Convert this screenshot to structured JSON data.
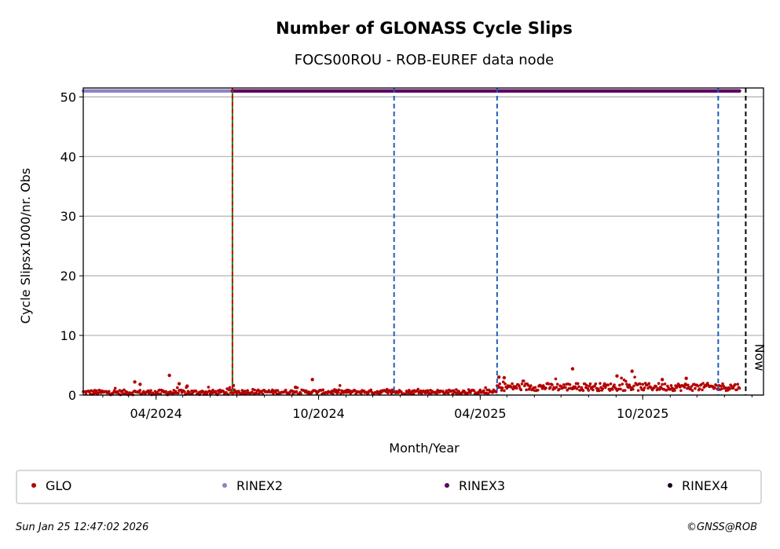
{
  "colors": {
    "glo": "#b30000",
    "rinex2": "#8c84c4",
    "rinex3": "#5e0061",
    "rinex4": "#1a0024",
    "vline_green": "#1a8a1a",
    "vline_red": "#cc0000",
    "vline_blue": "#1f5fb8",
    "grid": "#b0b0b0"
  },
  "chart_data": {
    "type": "scatter",
    "title": "Number of GLONASS Cycle Slips",
    "subtitle": "FOCS00ROU - ROB-EUREF data node",
    "xlabel": "Month/Year",
    "ylabel": "Cycle Slipsx1000/nr. Obs",
    "x_range": [
      "2024-01-10",
      "2026-02-14"
    ],
    "ylim": [
      0,
      51.5
    ],
    "yticks": [
      0,
      10,
      20,
      30,
      40,
      50
    ],
    "xticks": [
      {
        "date": "2024-04-01",
        "label": "04/2024"
      },
      {
        "date": "2024-10-01",
        "label": "10/2024"
      },
      {
        "date": "2025-04-01",
        "label": "04/2025"
      },
      {
        "date": "2025-10-01",
        "label": "10/2025"
      }
    ],
    "grid": true,
    "legend_placement": "bottom",
    "now_date": "2026-01-25",
    "now_label": "Now",
    "vertical_lines": [
      {
        "date": "2024-06-26",
        "style": "green-red-dashed"
      },
      {
        "date": "2024-12-25",
        "style": "blue-dashed"
      },
      {
        "date": "2025-04-20",
        "style": "blue-dashed"
      },
      {
        "date": "2025-12-25",
        "style": "blue-dashed"
      }
    ],
    "format_bands": [
      {
        "name": "RINEX2",
        "start": "2024-01-10",
        "end": "2024-06-26",
        "y": 51
      },
      {
        "name": "RINEX3",
        "start": "2024-06-26",
        "end": "2026-01-18",
        "y": 51
      }
    ],
    "series": [
      {
        "name": "GLO",
        "segments": [
          {
            "start": "2024-01-10",
            "end": "2024-06-25",
            "base": 0.4,
            "noise": 0.6,
            "peaks": [
              {
                "date": "2024-03-08",
                "value": 2.2
              },
              {
                "date": "2024-03-14",
                "value": 1.8
              },
              {
                "date": "2024-04-16",
                "value": 3.3
              },
              {
                "date": "2024-04-27",
                "value": 1.9
              },
              {
                "date": "2024-05-06",
                "value": 1.5
              }
            ]
          },
          {
            "start": "2024-06-26",
            "end": "2025-04-19",
            "base": 0.5,
            "noise": 0.5,
            "peaks": [
              {
                "date": "2024-06-27",
                "value": 1.6
              },
              {
                "date": "2024-09-24",
                "value": 2.6
              },
              {
                "date": "2024-09-05",
                "value": 1.3
              }
            ]
          },
          {
            "start": "2025-04-20",
            "end": "2026-01-18",
            "base": 1.3,
            "noise": 0.9,
            "peaks": [
              {
                "date": "2025-04-22",
                "value": 3.0
              },
              {
                "date": "2025-04-28",
                "value": 2.9
              },
              {
                "date": "2025-07-14",
                "value": 4.4
              },
              {
                "date": "2025-09-19",
                "value": 4.0
              },
              {
                "date": "2025-09-02",
                "value": 3.2
              },
              {
                "date": "2025-10-23",
                "value": 2.6
              },
              {
                "date": "2025-11-19",
                "value": 2.8
              }
            ]
          }
        ]
      }
    ],
    "legend": [
      "GLO",
      "RINEX2",
      "RINEX3",
      "RINEX4"
    ]
  },
  "footer": {
    "timestamp": "Sun Jan 25 12:47:02 2026",
    "credit": "©GNSS@ROB"
  }
}
